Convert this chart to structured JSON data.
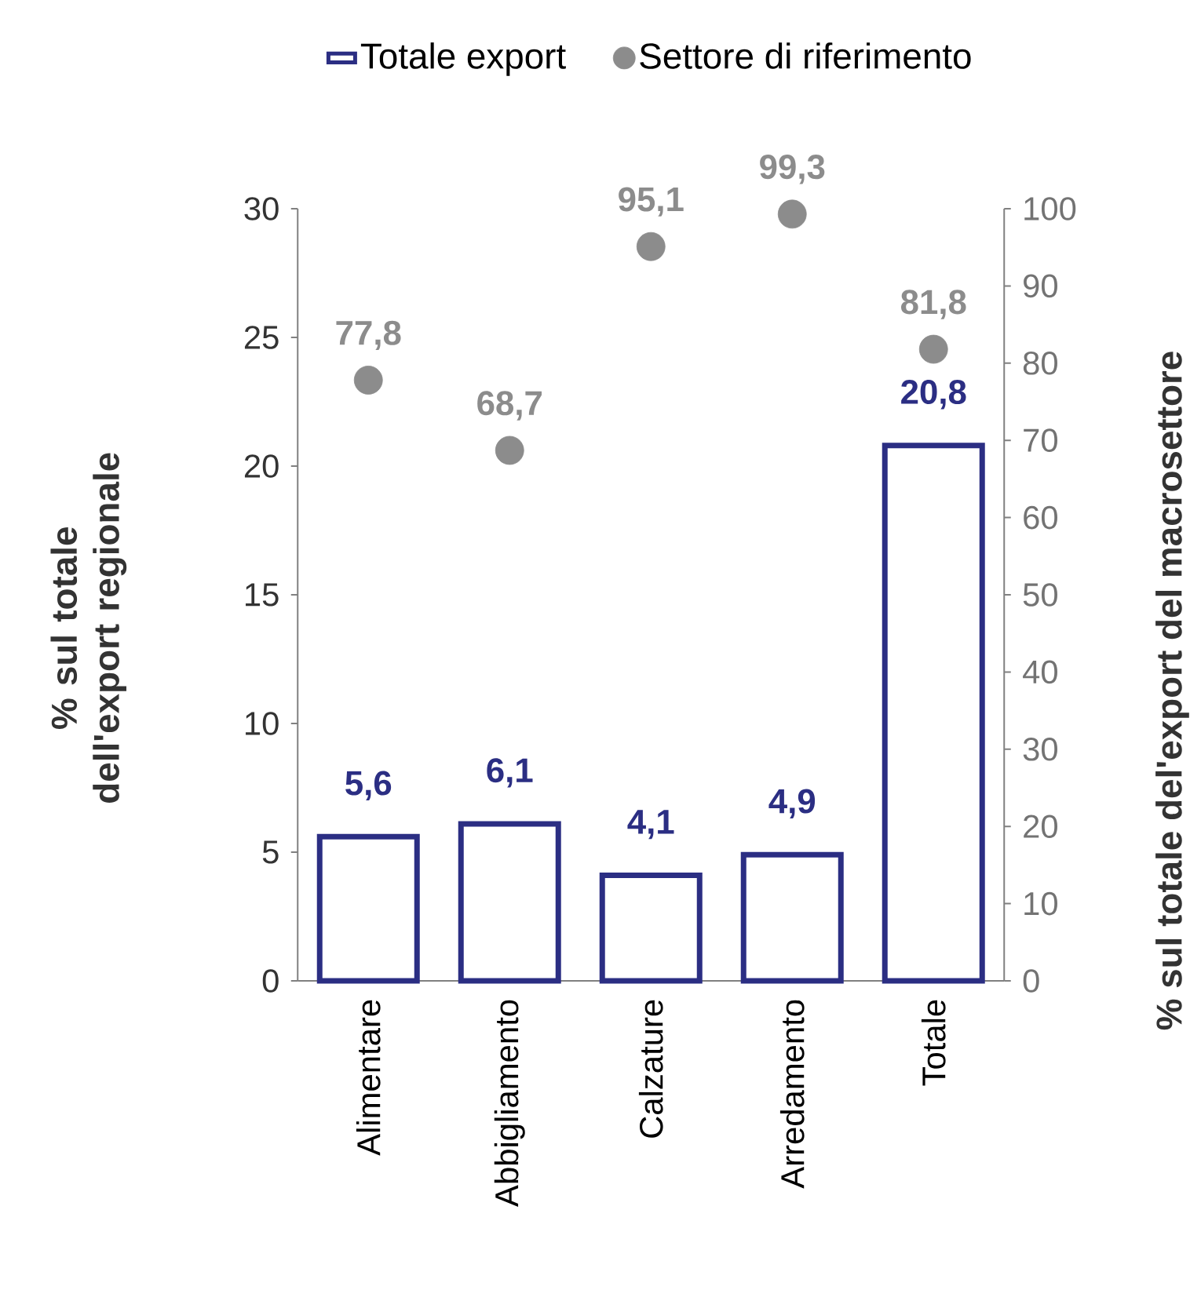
{
  "chart_data": {
    "type": "bar",
    "categories": [
      "Alimentare",
      "Abbigliamento",
      "Calzature",
      "Arredamento",
      "Totale"
    ],
    "ylabel": "% sul totale dell'export regionale",
    "y2label": "% sul totale del'export del  macrosettore",
    "ylim": [
      0,
      30
    ],
    "yticks": [
      0,
      5,
      10,
      15,
      20,
      25,
      30
    ],
    "y2lim": [
      0,
      100
    ],
    "y2ticks": [
      0,
      10,
      20,
      30,
      40,
      50,
      60,
      70,
      80,
      90,
      100
    ],
    "legend": "top",
    "grid": false,
    "series": [
      {
        "name": "Totale export",
        "type": "bar",
        "color": "#2b2e83",
        "values": [
          5.6,
          6.1,
          4.1,
          4.9,
          20.8
        ],
        "value_labels": [
          "5,6",
          "6,1",
          "4,1",
          "4,9",
          "20,8"
        ]
      },
      {
        "name": "Settore di riferimento",
        "type": "scatter",
        "axis": "y2",
        "color": "#8c8c8c",
        "values": [
          77.8,
          68.7,
          95.1,
          99.3,
          81.8
        ],
        "value_labels": [
          "77,8",
          "68,7",
          "95,1",
          "99,3",
          "81,8"
        ]
      }
    ]
  }
}
